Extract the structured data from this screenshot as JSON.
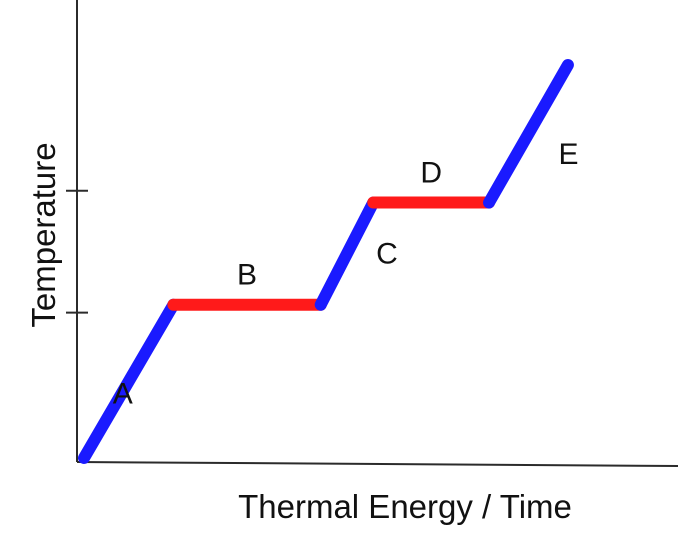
{
  "chart_data": {
    "type": "line",
    "title": "",
    "xlabel": "Thermal Energy / Time",
    "ylabel": "Temperature",
    "grid": false,
    "legend": "none",
    "xlim": [
      0,
      100
    ],
    "ylim": [
      0,
      100
    ],
    "segments": [
      {
        "label": "A",
        "kind": "heating",
        "color": "#1a1aff",
        "x": [
          0,
          17
        ],
        "y": [
          0,
          39
        ]
      },
      {
        "label": "B",
        "kind": "phase-change",
        "color": "#ff1a1a",
        "x": [
          17,
          45
        ],
        "y": [
          39,
          39
        ]
      },
      {
        "label": "C",
        "kind": "heating",
        "color": "#1a1aff",
        "x": [
          45,
          55
        ],
        "y": [
          39,
          65
        ]
      },
      {
        "label": "D",
        "kind": "phase-change",
        "color": "#ff1a1a",
        "x": [
          55,
          77
        ],
        "y": [
          65,
          65
        ]
      },
      {
        "label": "E",
        "kind": "heating",
        "color": "#1a1aff",
        "x": [
          77,
          92
        ],
        "y": [
          65,
          100
        ]
      }
    ],
    "y_ticks": [
      37,
      68
    ]
  }
}
